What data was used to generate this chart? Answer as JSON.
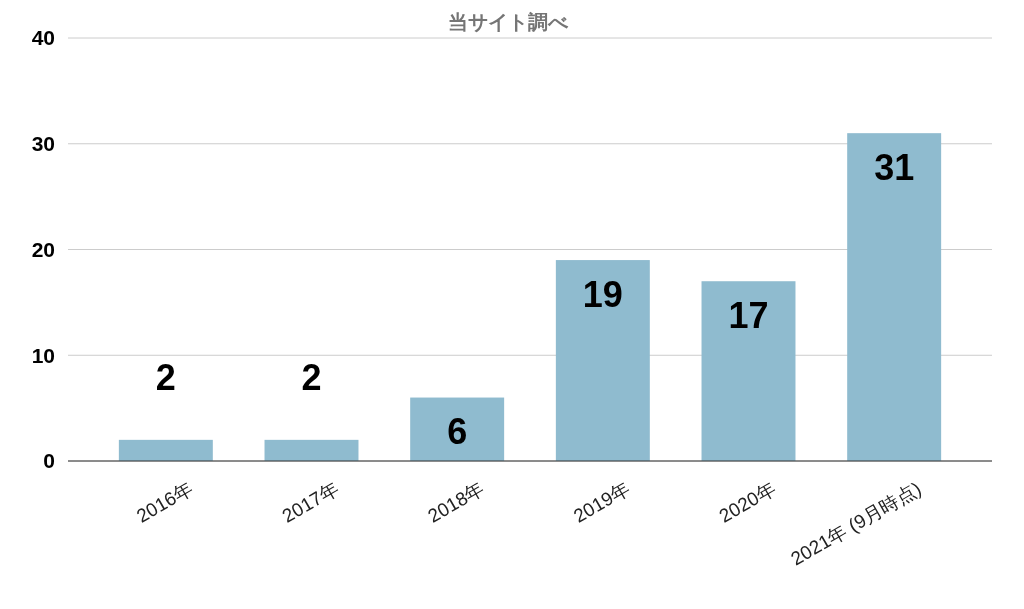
{
  "chart_data": {
    "type": "bar",
    "title": "当サイト調べ",
    "categories": [
      "2016年",
      "2017年",
      "2018年",
      "2019年",
      "2020年",
      "2021年 (9月時点)"
    ],
    "values": [
      2,
      2,
      6,
      19,
      17,
      31
    ],
    "color": "#8fbbcf",
    "ylim": [
      0,
      40
    ],
    "yticks": [
      0,
      10,
      20,
      30,
      40
    ],
    "grid": "y",
    "data_labels": true
  }
}
